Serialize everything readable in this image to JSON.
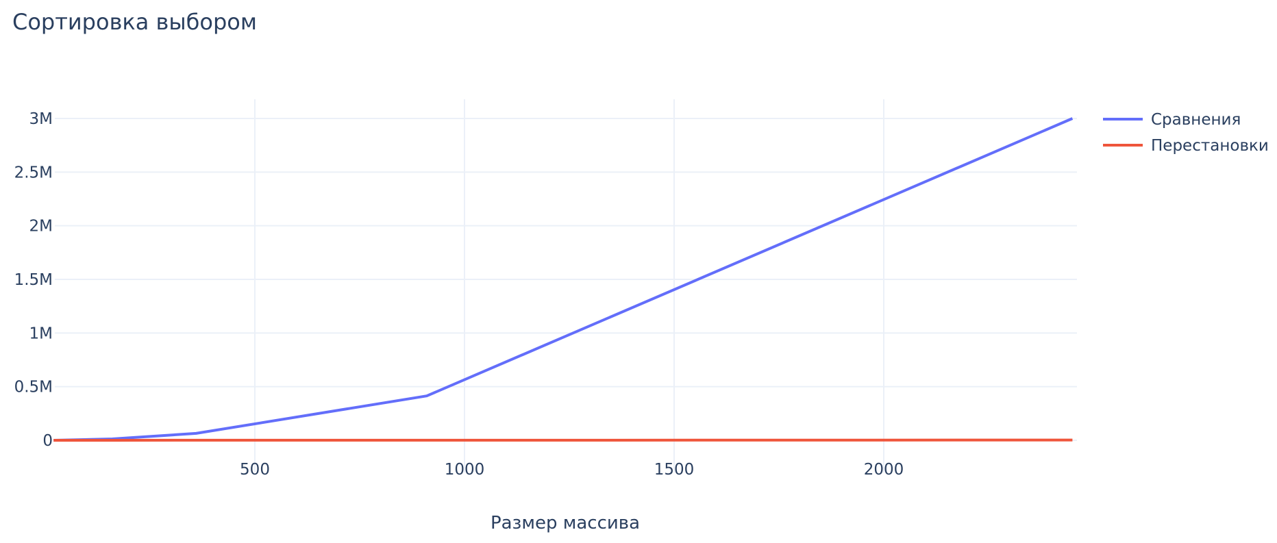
{
  "chart_data": {
    "type": "line",
    "title": "Сортировка выбором",
    "xlabel": "Размер массива",
    "ylabel": "",
    "xlim": [
      20,
      2450
    ],
    "ylim": [
      -150000,
      3180000
    ],
    "x_ticks": [
      500,
      1000,
      1500,
      2000
    ],
    "x_tick_labels": [
      "500",
      "1000",
      "1500",
      "2000"
    ],
    "y_ticks": [
      0,
      500000,
      1000000,
      1500000,
      2000000,
      2500000,
      3000000
    ],
    "y_tick_labels": [
      "0",
      "0.5M",
      "1M",
      "1.5M",
      "2M",
      "2.5M",
      "3M"
    ],
    "grid": true,
    "legend_position": "top-right",
    "series": [
      {
        "name": "Сравнения",
        "color": "#636efa",
        "x": [
          20,
          160,
          360,
          910,
          2450
        ],
        "y": [
          200,
          12700,
          64600,
          413600,
          3000000
        ]
      },
      {
        "name": "Перестановки",
        "color": "#ef553b",
        "x": [
          20,
          160,
          360,
          910,
          2450
        ],
        "y": [
          19,
          159,
          359,
          909,
          2449
        ]
      }
    ]
  }
}
